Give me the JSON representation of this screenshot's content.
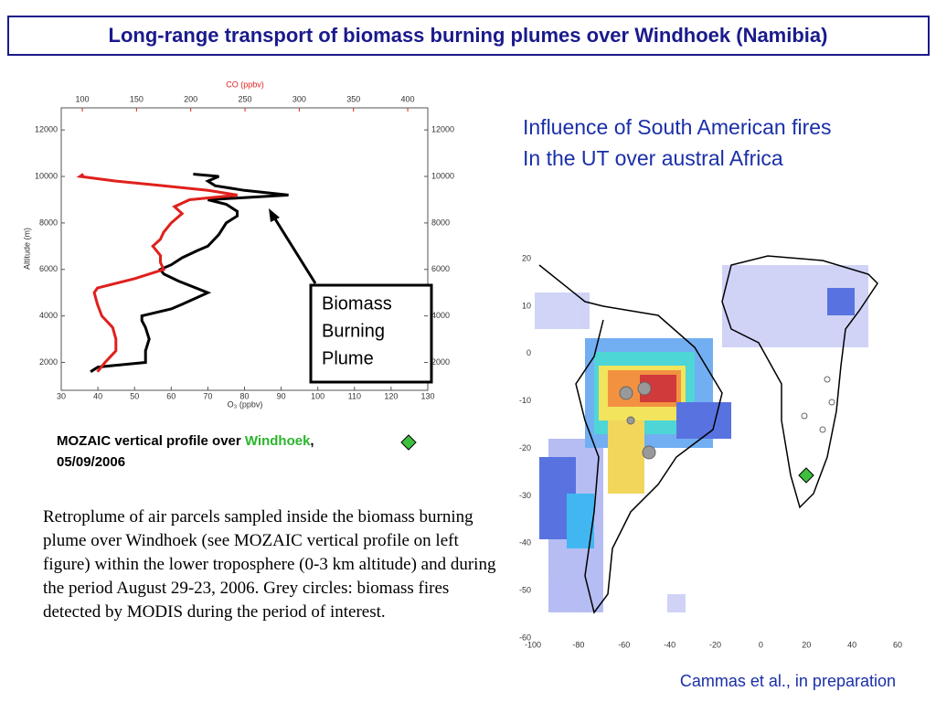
{
  "header": {
    "title": "Long-range transport of biomass burning plumes over Windhoek (Namibia)"
  },
  "chart_data": {
    "type": "line",
    "x_label": "O₃ (ppbv)",
    "x2_label": "CO (ppbv)",
    "y_label": "Altitude (m)",
    "xlim": [
      30,
      130
    ],
    "xticks": [
      30,
      40,
      50,
      60,
      70,
      80,
      90,
      100,
      110,
      120,
      130
    ],
    "x2lim": [
      80.6,
      418.5
    ],
    "x2ticks": [
      100,
      150,
      200,
      250,
      300,
      350,
      400
    ],
    "ylim": [
      800,
      12950
    ],
    "yticks": [
      2000,
      4000,
      6000,
      8000,
      10000,
      12000
    ],
    "x2_color": "#e0201c",
    "series": [
      {
        "color": "#000000",
        "axis": "x",
        "x": [
          38,
          40,
          53,
          53,
          54,
          53,
          52,
          52,
          60,
          63,
          70,
          62,
          58,
          57,
          60,
          63,
          67,
          70,
          73,
          75,
          78,
          78,
          75,
          70,
          92,
          80,
          72,
          70,
          73,
          66
        ],
        "values": [
          1600,
          1800,
          2000,
          2500,
          3000,
          3500,
          3800,
          4000,
          4300,
          4500,
          5000,
          5500,
          5800,
          6000,
          6200,
          6500,
          6800,
          7000,
          7500,
          8000,
          8300,
          8500,
          8800,
          9000,
          9200,
          9400,
          9600,
          9800,
          10000,
          10100
        ]
      },
      {
        "color": "#e0201c",
        "axis": "x2",
        "x": [
          114,
          121,
          131,
          131,
          128,
          118,
          114,
          111,
          114,
          148,
          175,
          172,
          172,
          165,
          172,
          175,
          182,
          192,
          185,
          199,
          243,
          216,
          175,
          131,
          98,
          101
        ],
        "values": [
          1600,
          2000,
          2500,
          3000,
          3500,
          4000,
          4500,
          5000,
          5200,
          5600,
          6000,
          6300,
          6600,
          7000,
          7300,
          7600,
          8000,
          8400,
          8700,
          9000,
          9200,
          9400,
          9600,
          9800,
          10000,
          10100
        ]
      }
    ],
    "annotation": [
      "Biomass",
      "Burning",
      "Plume"
    ]
  },
  "caption": {
    "prefix": "MOZAIC vertical profile over ",
    "place": "Windhoek",
    "comma": ",",
    "date": "05/09/2006"
  },
  "paragraph": "Retroplume of air parcels sampled inside the biomass burning plume over Windhoek (see MOZAIC vertical profile on left figure) within the lower troposphere (0-3 km altitude) and during the period August 29-23, 2006. Grey circles: biomass fires detected by MODIS during the period of interest.",
  "heading": [
    "Influence of South American fires",
    "In the UT over austral Africa"
  ],
  "map": {
    "xticks": [
      -100,
      -80,
      -60,
      -40,
      -20,
      0,
      20,
      40,
      60
    ],
    "yticks": [
      20,
      10,
      0,
      -10,
      -20,
      -30,
      -40,
      -50,
      -60
    ]
  },
  "credit": "Cammas et al., in preparation"
}
